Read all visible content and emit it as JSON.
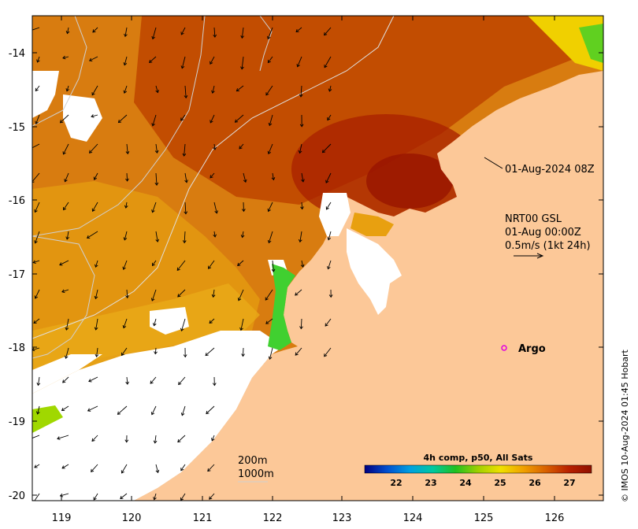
{
  "map": {
    "timestamp_label": "01-Aug-2024 08Z",
    "current_model": "NRT00 GSL",
    "current_time": "01-Aug 00:00Z",
    "current_scale": "0.5m/s (1kt 24h)",
    "argo_label": "Argo",
    "contour_labels": [
      "200m",
      "1000m"
    ],
    "credit": "© IMOS 10-Aug-2024 01:45 Hobart",
    "colorbar": {
      "title": "4h comp, p50, All Sats",
      "ticks": [
        "22",
        "23",
        "24",
        "25",
        "26",
        "27"
      ],
      "colors": [
        "#000080",
        "#0050d0",
        "#00a0e0",
        "#00c8a0",
        "#20c020",
        "#a0d000",
        "#f0e000",
        "#f0a000",
        "#d86000",
        "#b82000",
        "#901000"
      ]
    },
    "axes": {
      "x_ticks": [
        "119",
        "120",
        "121",
        "122",
        "123",
        "124",
        "125",
        "126"
      ],
      "y_ticks": [
        "-14",
        "-15",
        "-16",
        "-17",
        "-18",
        "-19",
        "-20"
      ]
    },
    "colors": {
      "land": "#fcc898",
      "cloud": "#ffffff",
      "sst_warm": "#c04000",
      "sst_hot": "#a01800",
      "sst_mid": "#d88000",
      "sst_cool": "#e8a000",
      "coastal_green": "#40d030",
      "argo_marker": "#e000e0"
    }
  }
}
